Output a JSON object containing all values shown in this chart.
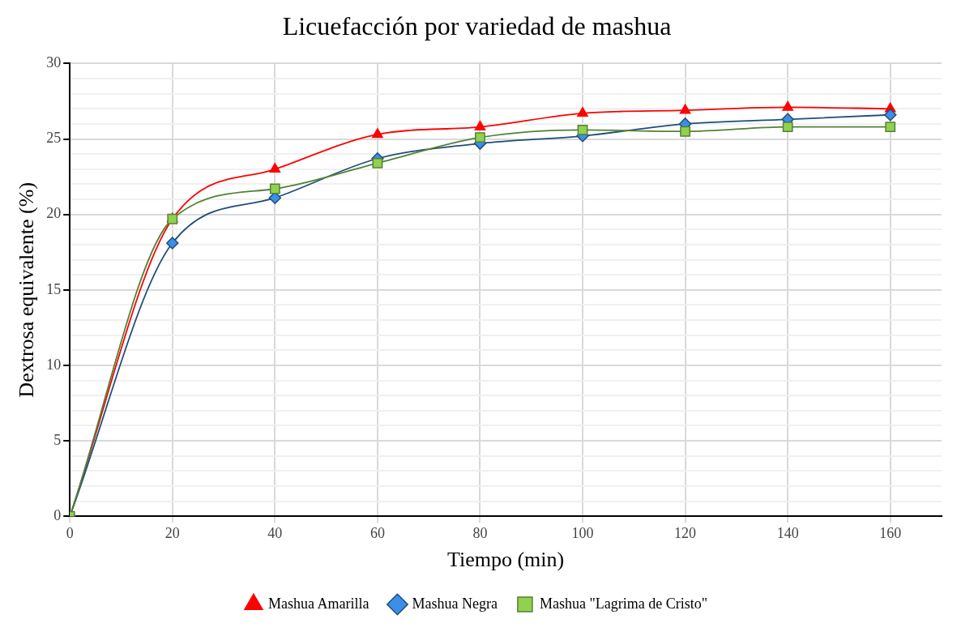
{
  "chart_data": {
    "type": "line",
    "title": "Licuefacción por variedad de mashua",
    "xlabel": "Tiempo (min)",
    "ylabel": "Dextrosa equivalente (%)",
    "x": [
      0,
      20,
      40,
      60,
      80,
      100,
      120,
      140,
      160
    ],
    "xlim": [
      0,
      170
    ],
    "xticks": [
      0,
      20,
      40,
      60,
      80,
      100,
      120,
      140,
      160
    ],
    "ylim": [
      0,
      30
    ],
    "yticks": [
      0,
      {
        "value": 1,
        "label": null
      },
      {
        "value": 2,
        "label": null
      },
      {
        "value": 3,
        "label": null
      },
      {
        "value": 4,
        "label": null
      },
      5,
      {
        "value": 6,
        "label": null
      },
      {
        "value": 7,
        "label": null
      },
      {
        "value": 8,
        "label": null
      },
      {
        "value": 9,
        "label": null
      },
      10,
      {
        "value": 11,
        "label": null
      },
      {
        "value": 12,
        "label": null
      },
      {
        "value": 13,
        "label": null
      },
      {
        "value": 14,
        "label": null
      },
      15,
      {
        "value": 16,
        "label": null
      },
      {
        "value": 17,
        "label": null
      },
      {
        "value": 18,
        "label": null
      },
      {
        "value": 19,
        "label": null
      },
      20,
      {
        "value": 21,
        "label": null
      },
      {
        "value": 22,
        "label": null
      },
      {
        "value": 23,
        "label": null
      },
      {
        "value": 24,
        "label": null
      },
      25,
      {
        "value": 26,
        "label": null
      },
      {
        "value": 27,
        "label": null
      },
      {
        "value": 28,
        "label": null
      },
      {
        "value": 29,
        "label": null
      },
      30
    ],
    "grid": true,
    "legend": "bottom",
    "line_style": "solid",
    "series": [
      {
        "name": "Mashua Amarilla",
        "color": "#ff0000",
        "marker": "triangle",
        "values": [
          0,
          19.7,
          23.0,
          25.3,
          25.8,
          26.7,
          26.9,
          27.1,
          27.0
        ]
      },
      {
        "name": "Mashua Negra",
        "color": "#1f4e79",
        "marker": "diamond",
        "values": [
          0,
          18.1,
          21.1,
          23.7,
          24.7,
          25.2,
          26.0,
          26.3,
          26.6
        ]
      },
      {
        "name": "Mashua \"Lagrima de Cristo\"",
        "color": "#538135",
        "marker": "square",
        "values": [
          0,
          19.7,
          21.7,
          23.4,
          25.1,
          25.6,
          25.5,
          25.8,
          25.8
        ]
      }
    ]
  }
}
